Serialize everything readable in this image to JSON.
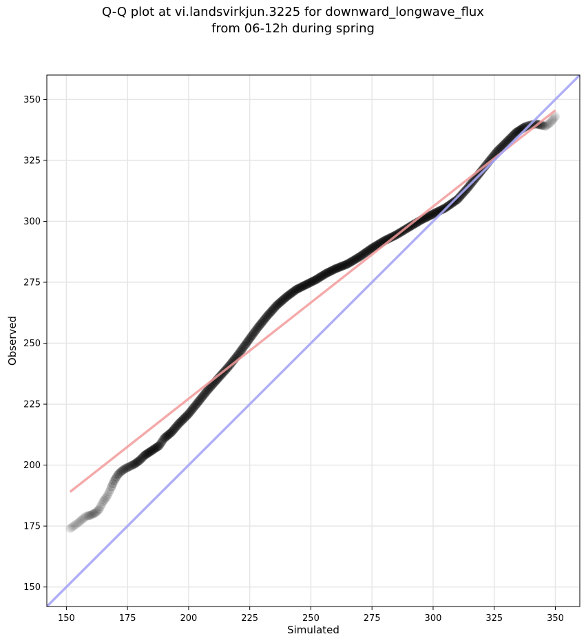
{
  "chart_data": {
    "type": "scatter",
    "title_line1": "Q-Q plot at vi.landsvirkjun.3225 for downward_longwave_flux",
    "title_line2": "from 06-12h during spring",
    "xlabel": "Simulated",
    "ylabel": "Observed",
    "xlim": [
      142,
      360
    ],
    "ylim": [
      142,
      360
    ],
    "xticks": [
      150,
      175,
      200,
      225,
      250,
      275,
      300,
      325,
      350
    ],
    "yticks": [
      150,
      175,
      200,
      225,
      250,
      275,
      300,
      325,
      350
    ],
    "grid": true,
    "quantile_curve": {
      "x": [
        151.5,
        153,
        155,
        158,
        160,
        162,
        163.5,
        165,
        166.5,
        168,
        169.5,
        171,
        172.5,
        174,
        176,
        178,
        180,
        182,
        185,
        188,
        190,
        193,
        196,
        200,
        204,
        208,
        212,
        216,
        220,
        224,
        228,
        232,
        236,
        240,
        244,
        248,
        252,
        256,
        260,
        265,
        270,
        275,
        280,
        285,
        290,
        295,
        300,
        305,
        310,
        314,
        318,
        322,
        326,
        330,
        334,
        338,
        342,
        346,
        348,
        350
      ],
      "y": [
        174,
        175,
        176.5,
        179,
        179.5,
        180.5,
        182,
        185,
        187,
        190,
        193.5,
        196,
        197.5,
        198.5,
        199.5,
        200.5,
        202,
        204,
        206,
        208,
        211,
        213.5,
        217,
        221,
        226,
        231,
        235.5,
        240,
        245,
        250.5,
        256,
        261,
        265.5,
        269,
        272,
        274,
        276,
        278.5,
        280.5,
        282.5,
        285.5,
        289,
        292,
        294.5,
        297.5,
        300.5,
        303,
        305.5,
        309,
        313.5,
        318.5,
        323.5,
        328.5,
        332.5,
        336.5,
        339,
        340,
        339,
        340.5,
        343
      ]
    },
    "series": [
      {
        "type": "points",
        "color": "#000000",
        "marker": "circle",
        "opacity_profile": "faint at extremes"
      },
      {
        "type": "line",
        "color": "#ff6666",
        "points": [
          [
            151.5,
            189
          ],
          [
            350,
            345.5
          ]
        ]
      },
      {
        "type": "line",
        "color": "#9999ff",
        "points": [
          [
            142,
            142
          ],
          [
            360,
            360
          ]
        ]
      }
    ],
    "colors": {
      "points": "#000000",
      "regression_line": "#f29b9b",
      "identity_line": "#a6a6f6"
    }
  }
}
